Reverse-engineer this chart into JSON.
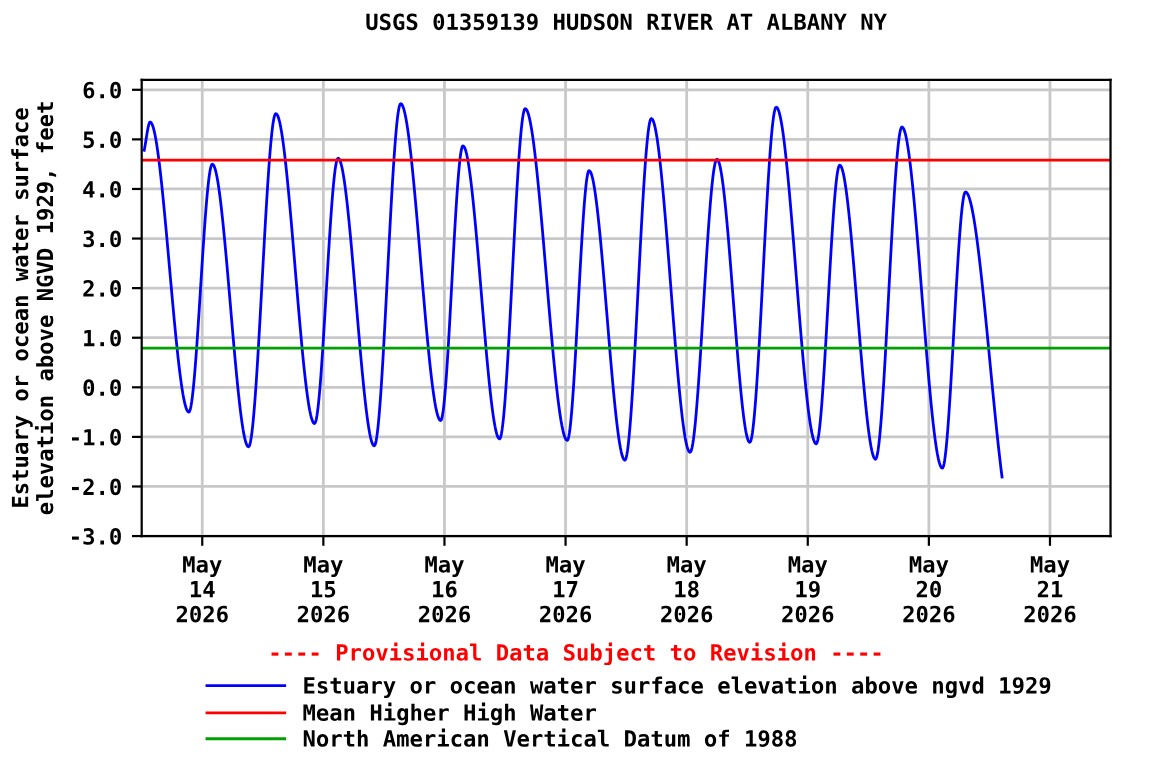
{
  "chart_data": {
    "type": "line",
    "title": "USGS 01359139 HUDSON RIVER AT ALBANY NY",
    "ylabel": "Estuary or ocean water surface\nelevation above NGVD 1929, feet",
    "x": [
      "2026-05-13T12:30",
      "2026-05-13T13:40",
      "2026-05-13T21:20",
      "2026-05-14T02:00",
      "2026-05-14T09:10",
      "2026-05-14T14:35",
      "2026-05-14T22:15",
      "2026-05-15T02:55",
      "2026-05-15T10:05",
      "2026-05-15T15:20",
      "2026-05-15T23:15",
      "2026-05-16T03:40",
      "2026-05-16T10:55",
      "2026-05-16T16:00",
      "2026-05-17T00:20",
      "2026-05-17T04:40",
      "2026-05-17T11:45",
      "2026-05-17T17:00",
      "2026-05-18T00:40",
      "2026-05-18T06:00",
      "2026-05-18T12:30",
      "2026-05-18T17:45",
      "2026-05-19T01:40",
      "2026-05-19T06:20",
      "2026-05-19T13:25",
      "2026-05-19T18:40",
      "2026-05-20T02:40",
      "2026-05-20T07:15",
      "2026-05-20T14:30"
    ],
    "series": [
      {
        "name": "Estuary or ocean water surface elevation above ngvd 1929",
        "color": "#0000ff",
        "values": [
          4.78,
          5.35,
          -0.5,
          4.5,
          -1.2,
          5.52,
          -0.73,
          4.62,
          -1.18,
          5.72,
          -0.67,
          4.87,
          -1.04,
          5.62,
          -1.07,
          4.37,
          -1.47,
          5.42,
          -1.31,
          4.6,
          -1.11,
          5.65,
          -1.14,
          4.48,
          -1.45,
          5.25,
          -1.63,
          3.94,
          -1.81
        ]
      }
    ],
    "ref_lines": [
      {
        "axis": "y",
        "value": 4.58,
        "label": "Mean Higher High Water",
        "color": "#ff0000"
      },
      {
        "axis": "y",
        "value": 0.79,
        "label": "North American Vertical Datum of 1988",
        "color": "#00a000"
      }
    ],
    "annotations": [
      "---- Provisional Data Subject to Revision ----"
    ],
    "xlim": [
      "2026-05-13T12:00",
      "2026-05-21T12:00"
    ],
    "xticks": [
      {
        "value": "2026-05-14",
        "label": "May\n14\n2026"
      },
      {
        "value": "2026-05-15",
        "label": "May\n15\n2026"
      },
      {
        "value": "2026-05-16",
        "label": "May\n16\n2026"
      },
      {
        "value": "2026-05-17",
        "label": "May\n17\n2026"
      },
      {
        "value": "2026-05-18",
        "label": "May\n18\n2026"
      },
      {
        "value": "2026-05-19",
        "label": "May\n19\n2026"
      },
      {
        "value": "2026-05-20",
        "label": "May\n20\n2026"
      },
      {
        "value": "2026-05-21",
        "label": "May\n21\n2026"
      }
    ],
    "ylim": [
      -3.0,
      6.2
    ],
    "yticks": [
      {
        "value": -3,
        "label": "-3.0"
      },
      {
        "value": -2,
        "label": "-2.0"
      },
      {
        "value": -1,
        "label": "-1.0"
      },
      {
        "value": 0,
        "label": "0.0"
      },
      {
        "value": 1,
        "label": "1.0"
      },
      {
        "value": 2,
        "label": "2.0"
      },
      {
        "value": 3,
        "label": "3.0"
      },
      {
        "value": 4,
        "label": "4.0"
      },
      {
        "value": 5,
        "label": "5.0"
      },
      {
        "value": 6,
        "label": "6.0"
      }
    ],
    "grid": true,
    "legend": "bottom",
    "line_style": "solid"
  }
}
